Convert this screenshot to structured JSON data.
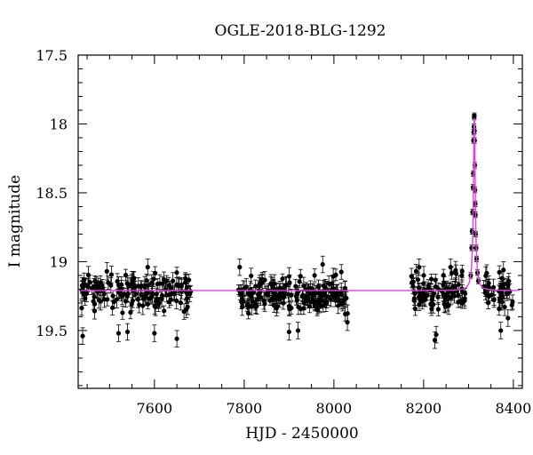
{
  "chart_data": {
    "type": "scatter",
    "title": "OGLE-2018-BLG-1292",
    "xlabel": "HJD - 2450000",
    "ylabel": "I magnitude",
    "xlim": [
      7430,
      8420
    ],
    "ylim": [
      19.92,
      17.5
    ],
    "y_inverted": true,
    "xticks": [
      7600,
      7800,
      8000,
      8200,
      8400
    ],
    "yticks": [
      17.5,
      18,
      18.5,
      19,
      19.5
    ],
    "xticklabels": [
      "7600",
      "7800",
      "8000",
      "8200",
      "8400"
    ],
    "yticklabels": [
      "17.5",
      "18",
      "18.5",
      "19",
      "19.5"
    ],
    "grid": false,
    "model": {
      "color": "#e040e0",
      "baseline_mag": 19.21,
      "peak_hjd": 8313,
      "peak_mag": 17.94,
      "timescale_days": 4.5
    },
    "seasons": [
      {
        "x_range": [
          7437,
          7682
        ],
        "mean_mag": 19.22,
        "n_points": 150
      },
      {
        "x_range": [
          7785,
          8032
        ],
        "mean_mag": 19.24,
        "n_points": 190
      },
      {
        "x_range": [
          8165,
          8400
        ],
        "mean_mag": 19.22,
        "n_points": 140
      }
    ],
    "peak_points": [
      {
        "x": 8305,
        "y": 19.1
      },
      {
        "x": 8307,
        "y": 18.9
      },
      {
        "x": 8308,
        "y": 18.78
      },
      {
        "x": 8309,
        "y": 18.64
      },
      {
        "x": 8310,
        "y": 18.46
      },
      {
        "x": 8310.5,
        "y": 18.36
      },
      {
        "x": 8311,
        "y": 18.12
      },
      {
        "x": 8311.5,
        "y": 18.06
      },
      {
        "x": 8312,
        "y": 18.02
      },
      {
        "x": 8312.5,
        "y": 17.95
      },
      {
        "x": 8313,
        "y": 17.94
      },
      {
        "x": 8313.3,
        "y": 18.05
      },
      {
        "x": 8313.6,
        "y": 18.12
      },
      {
        "x": 8314,
        "y": 18.3
      },
      {
        "x": 8314.5,
        "y": 18.48
      },
      {
        "x": 8315,
        "y": 18.58
      },
      {
        "x": 8315.5,
        "y": 18.66
      },
      {
        "x": 8316,
        "y": 18.8
      },
      {
        "x": 8317,
        "y": 18.9
      },
      {
        "x": 8318,
        "y": 18.98
      },
      {
        "x": 8320,
        "y": 19.08
      },
      {
        "x": 8322,
        "y": 19.14
      }
    ],
    "notable_points": [
      {
        "x": 7440,
        "y": 19.54
      },
      {
        "x": 7520,
        "y": 19.52
      },
      {
        "x": 7540,
        "y": 19.51
      },
      {
        "x": 7585,
        "y": 19.04
      },
      {
        "x": 7600,
        "y": 19.52
      },
      {
        "x": 7650,
        "y": 19.56
      },
      {
        "x": 7790,
        "y": 19.04
      },
      {
        "x": 7900,
        "y": 19.51
      },
      {
        "x": 7920,
        "y": 19.5
      },
      {
        "x": 7975,
        "y": 19.02
      },
      {
        "x": 8030,
        "y": 19.44
      },
      {
        "x": 8190,
        "y": 19.04
      },
      {
        "x": 8225,
        "y": 19.57
      },
      {
        "x": 8228,
        "y": 19.53
      },
      {
        "x": 8260,
        "y": 19.04
      },
      {
        "x": 8372,
        "y": 19.5
      },
      {
        "x": 8378,
        "y": 19.06
      },
      {
        "x": 8388,
        "y": 19.41
      }
    ]
  }
}
